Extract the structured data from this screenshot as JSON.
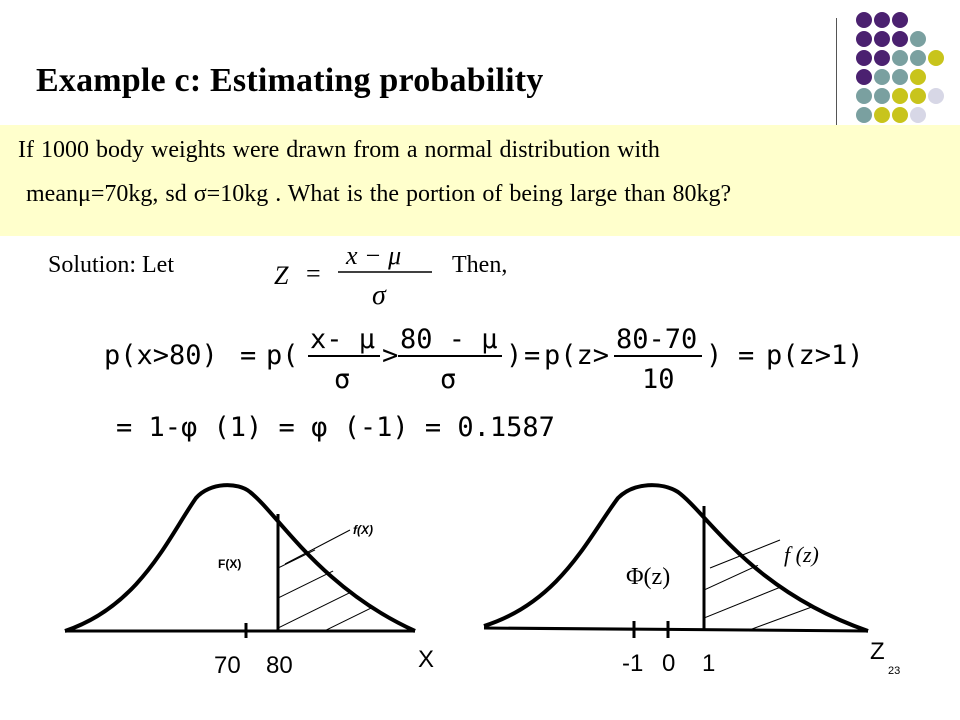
{
  "slide": {
    "title": "Example c: Estimating probability",
    "prompt_line1": "If 1000 body weights were drawn from a normal distribution with",
    "prompt_line2": "meanμ=70kg, sd σ=10kg . What is the portion of being large than 80kg?",
    "solution_label": "Solution:  Let",
    "then_label": "Then,",
    "page_number": "23"
  },
  "z_definition": {
    "lhs": "Z",
    "equals": "=",
    "numerator": "x − μ",
    "denominator": "σ"
  },
  "equation": {
    "line1": {
      "p1": "p(x>80)",
      "eq1": "=",
      "p2_open": "p(",
      "f1_num": "x- μ",
      "f1_den": "σ",
      "gt1": ">",
      "f2_num": "80 - μ",
      "f2_den": "σ",
      "p2_close": ")",
      "eq2": "=",
      "p3_open": "p(z>",
      "f3_num": "80-70",
      "f3_den": "10",
      "p3_close": ")",
      "eq3": "=",
      "p4": "p(z>1)"
    },
    "line2": "= 1-φ (1) = φ (-1) = 0.1587"
  },
  "left_graph": {
    "fx_label": "f(X)",
    "Fx_label": "F(X)",
    "tick_70": "70",
    "tick_80": "80",
    "axis_label": "X"
  },
  "right_graph": {
    "phi_label": "Φ(z)",
    "fz_label": "f (z)",
    "tick_neg1": "-1",
    "tick_0": "0",
    "tick_1": "1",
    "axis_label": "Z"
  },
  "decoration_colors": {
    "purple": "#4b2170",
    "teal": "#7aa0a0",
    "olive": "#c8c41c",
    "lavender": "#d7d7e6",
    "prompt_bg": "#ffffcc"
  }
}
